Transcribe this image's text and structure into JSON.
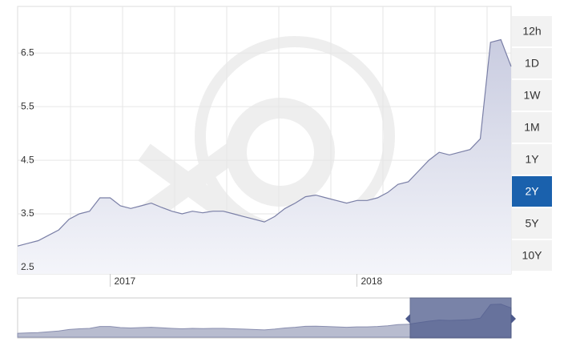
{
  "chart_data": {
    "type": "area",
    "categories": [
      null,
      null,
      null,
      null,
      null,
      null,
      null,
      null,
      null,
      "2017",
      null,
      null,
      null,
      null,
      null,
      null,
      null,
      null,
      null,
      null,
      null,
      null,
      null,
      null,
      null,
      null,
      null,
      null,
      null,
      null,
      null,
      null,
      null,
      "2018",
      null,
      null,
      null,
      null,
      null,
      null,
      null,
      null,
      null,
      null,
      null,
      null,
      null,
      null,
      null
    ],
    "values": [
      2.9,
      2.95,
      3.0,
      3.1,
      3.2,
      3.4,
      3.5,
      3.55,
      3.8,
      3.8,
      3.65,
      3.6,
      3.65,
      3.7,
      3.62,
      3.55,
      3.5,
      3.55,
      3.52,
      3.55,
      3.55,
      3.5,
      3.45,
      3.4,
      3.35,
      3.45,
      3.6,
      3.7,
      3.82,
      3.85,
      3.8,
      3.75,
      3.7,
      3.75,
      3.75,
      3.8,
      3.9,
      4.05,
      4.1,
      4.3,
      4.5,
      4.65,
      4.6,
      4.65,
      4.7,
      4.9,
      6.7,
      6.75,
      6.25
    ],
    "color": "#7a7fa6",
    "ylim": [
      2.38,
      7.37
    ],
    "yticks": [
      2.5,
      3.5,
      4.5,
      5.5,
      6.5
    ],
    "grid": true,
    "ranges": [
      "12h",
      "1D",
      "1W",
      "1M",
      "1Y",
      "2Y",
      "5Y",
      "10Y"
    ],
    "selected_range": "2Y"
  }
}
